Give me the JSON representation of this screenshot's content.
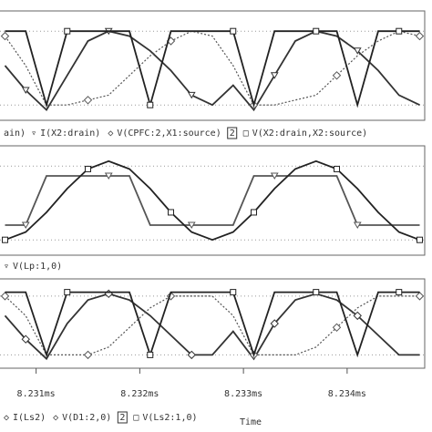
{
  "chart_data": [
    {
      "type": "line",
      "legend_prefix": "ain)",
      "axis_marker": "2",
      "x": [
        8.2307,
        8.2309,
        8.2311,
        8.2313,
        8.2315,
        8.2317,
        8.2319,
        8.2321,
        8.2323,
        8.2325,
        8.2327,
        8.2329,
        8.2331,
        8.2333,
        8.2335,
        8.2337,
        8.2339,
        8.2341,
        8.2343,
        8.2345,
        8.2347
      ],
      "xlim": [
        8.2307,
        8.2347
      ],
      "ylim": [
        0,
        1
      ],
      "series": [
        {
          "name": "I(X2:drain)",
          "marker": "triangle",
          "color": "#333333",
          "values": [
            0.5,
            0.25,
            0.05,
            0.4,
            0.75,
            0.85,
            0.8,
            0.65,
            0.45,
            0.2,
            0.1,
            0.3,
            0.05,
            0.4,
            0.75,
            0.85,
            0.8,
            0.65,
            0.45,
            0.2,
            0.1
          ]
        },
        {
          "name": "V(CPFC:2,X1:source)",
          "marker": "diamond",
          "color": "#555555",
          "dashed": true,
          "values": [
            0.8,
            0.5,
            0.1,
            0.1,
            0.15,
            0.2,
            0.4,
            0.6,
            0.75,
            0.85,
            0.8,
            0.5,
            0.1,
            0.1,
            0.15,
            0.2,
            0.4,
            0.6,
            0.75,
            0.85,
            0.8
          ]
        },
        {
          "name": "V(X2:drain,X2:source)",
          "marker": "square",
          "color": "#222222",
          "values": [
            0.85,
            0.85,
            0.1,
            0.85,
            0.85,
            0.85,
            0.85,
            0.1,
            0.85,
            0.85,
            0.85,
            0.85,
            0.1,
            0.85,
            0.85,
            0.85,
            0.85,
            0.1,
            0.85,
            0.85,
            0.85
          ]
        }
      ]
    },
    {
      "type": "line",
      "x": [
        8.2307,
        8.2309,
        8.2311,
        8.2313,
        8.2315,
        8.2317,
        8.2319,
        8.2321,
        8.2323,
        8.2325,
        8.2327,
        8.2329,
        8.2331,
        8.2333,
        8.2335,
        8.2337,
        8.2339,
        8.2341,
        8.2343,
        8.2345,
        8.2347
      ],
      "xlim": [
        8.2307,
        8.2347
      ],
      "ylim": [
        0,
        1
      ],
      "series": [
        {
          "name": "V(Lp:1,0)",
          "marker": "triangle",
          "color": "#555555",
          "values": [
            0.25,
            0.25,
            0.75,
            0.75,
            0.75,
            0.75,
            0.75,
            0.25,
            0.25,
            0.25,
            0.25,
            0.25,
            0.75,
            0.75,
            0.75,
            0.75,
            0.75,
            0.25,
            0.25,
            0.25,
            0.25
          ]
        },
        {
          "marker": "square",
          "color": "#222222",
          "values": [
            0.1,
            0.18,
            0.38,
            0.62,
            0.82,
            0.9,
            0.82,
            0.62,
            0.38,
            0.18,
            0.1,
            0.18,
            0.38,
            0.62,
            0.82,
            0.9,
            0.82,
            0.62,
            0.38,
            0.18,
            0.1
          ]
        }
      ]
    },
    {
      "type": "line",
      "axis_marker": "2",
      "xlabel": "Time",
      "x": [
        8.2307,
        8.2309,
        8.2311,
        8.2313,
        8.2315,
        8.2317,
        8.2319,
        8.2321,
        8.2323,
        8.2325,
        8.2327,
        8.2329,
        8.2331,
        8.2333,
        8.2335,
        8.2337,
        8.2339,
        8.2341,
        8.2343,
        8.2345,
        8.2347
      ],
      "xlim": [
        8.2307,
        8.2347
      ],
      "ylim": [
        0,
        1
      ],
      "xticks": [
        {
          "value": 8.231,
          "label": "8.231ms"
        },
        {
          "value": 8.232,
          "label": "8.232ms"
        },
        {
          "value": 8.233,
          "label": "8.233ms"
        },
        {
          "value": 8.234,
          "label": "8.234ms"
        }
      ],
      "series": [
        {
          "name": "I(Ls2)",
          "marker": "diamond",
          "color": "#333333",
          "values": [
            0.6,
            0.3,
            0.05,
            0.5,
            0.8,
            0.88,
            0.8,
            0.6,
            0.35,
            0.1,
            0.1,
            0.4,
            0.05,
            0.5,
            0.8,
            0.88,
            0.8,
            0.6,
            0.35,
            0.1,
            0.1
          ]
        },
        {
          "name": "V(D1:2,0)",
          "marker": "diamond",
          "color": "#555555",
          "dashed": true,
          "values": [
            0.85,
            0.6,
            0.1,
            0.1,
            0.1,
            0.2,
            0.45,
            0.7,
            0.85,
            0.85,
            0.85,
            0.6,
            0.1,
            0.1,
            0.1,
            0.2,
            0.45,
            0.7,
            0.85,
            0.85,
            0.85
          ]
        },
        {
          "name": "V(Ls2:1,0)",
          "marker": "square",
          "color": "#222222",
          "values": [
            0.9,
            0.9,
            0.1,
            0.9,
            0.9,
            0.9,
            0.9,
            0.1,
            0.9,
            0.9,
            0.9,
            0.9,
            0.1,
            0.9,
            0.9,
            0.9,
            0.9,
            0.1,
            0.9,
            0.9,
            0.9
          ]
        }
      ]
    }
  ]
}
